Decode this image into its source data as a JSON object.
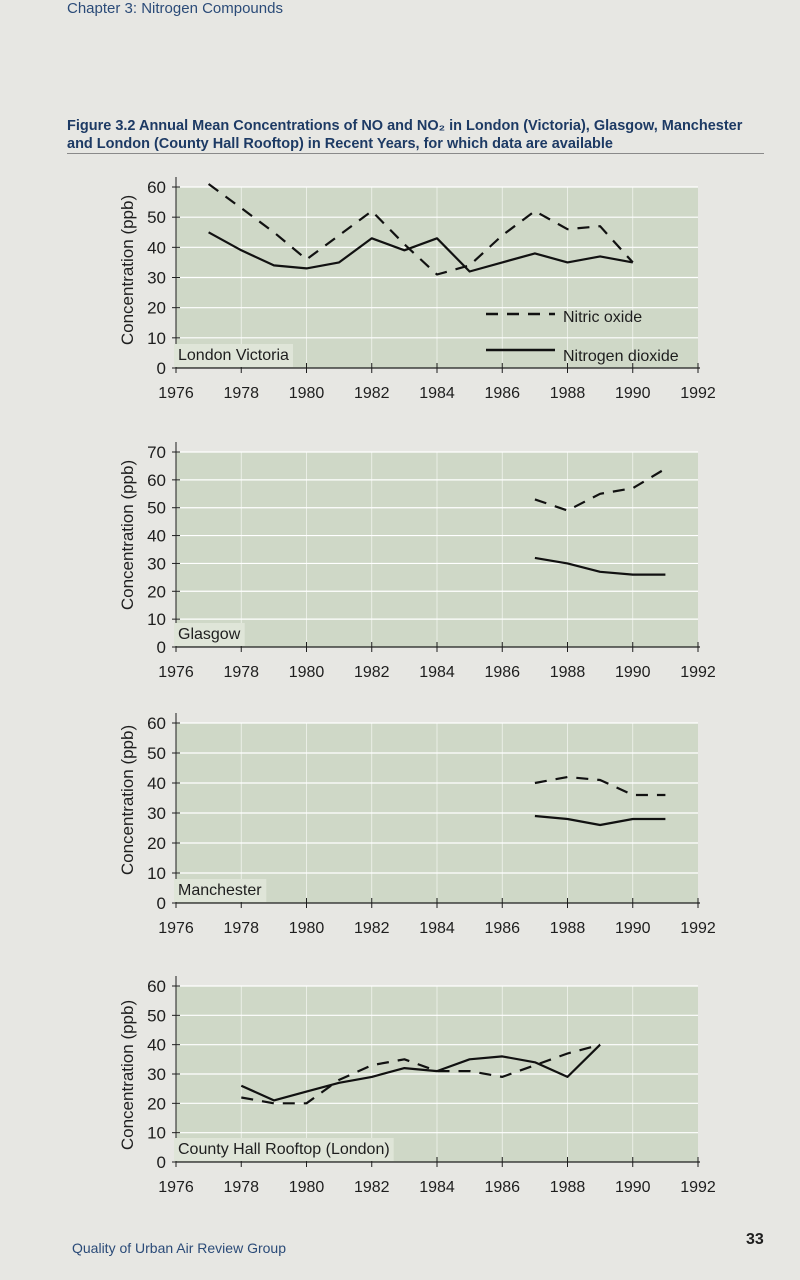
{
  "header": {
    "chapter": "Chapter 3: Nitrogen Compounds"
  },
  "figure_caption": "Figure 3.2 Annual Mean Concentrations of NO and NO₂ in London (Victoria), Glasgow, Manchester and London (County Hall Rooftop) in Recent Years, for which data are available",
  "legend": {
    "no_label": "Nitric oxide",
    "no2_label": "Nitrogen dioxide"
  },
  "footer": {
    "publisher": "Quality of Urban Air Review Group",
    "page_number": "33"
  },
  "colors": {
    "panel": "#cfd8c7",
    "grid": "#ffffff",
    "line": "#111111",
    "text": "#1e1e1e"
  },
  "chart_data": [
    {
      "type": "line",
      "panel_label": "London Victoria",
      "ylabel": "Concentration  (ppb)",
      "xlim": [
        1976,
        1992
      ],
      "ylim": [
        0,
        60
      ],
      "x_ticks": [
        "1976",
        "1978",
        "1980",
        "1982",
        "1984",
        "1986",
        "1988",
        "1990",
        "1992"
      ],
      "y_ticks": [
        "0",
        "10",
        "20",
        "30",
        "40",
        "50",
        "60"
      ],
      "grid": true,
      "series": [
        {
          "name": "Nitric oxide",
          "style": "dashed",
          "x": [
            1977,
            1978,
            1979,
            1980,
            1981,
            1982,
            1983,
            1984,
            1985,
            1986,
            1987,
            1988,
            1989,
            1990
          ],
          "y": [
            61,
            53,
            45,
            36,
            44,
            52,
            41,
            31,
            34,
            44,
            52,
            46,
            47,
            35
          ]
        },
        {
          "name": "Nitrogen dioxide",
          "style": "solid",
          "x": [
            1977,
            1978,
            1979,
            1980,
            1981,
            1982,
            1983,
            1984,
            1985,
            1986,
            1987,
            1988,
            1989,
            1990
          ],
          "y": [
            45,
            39,
            34,
            33,
            35,
            43,
            39,
            43,
            32,
            35,
            38,
            35,
            37,
            35
          ]
        }
      ]
    },
    {
      "type": "line",
      "panel_label": "Glasgow",
      "ylabel": "Concentration  (ppb)",
      "xlim": [
        1976,
        1992
      ],
      "ylim": [
        0,
        70
      ],
      "x_ticks": [
        "1976",
        "1978",
        "1980",
        "1982",
        "1984",
        "1986",
        "1988",
        "1990",
        "1992"
      ],
      "y_ticks": [
        "0",
        "10",
        "20",
        "30",
        "40",
        "50",
        "60",
        "70"
      ],
      "grid": true,
      "series": [
        {
          "name": "Nitric oxide",
          "style": "dashed",
          "x": [
            1987,
            1988,
            1989,
            1990,
            1991
          ],
          "y": [
            53,
            49,
            55,
            57,
            64
          ]
        },
        {
          "name": "Nitrogen dioxide",
          "style": "solid",
          "x": [
            1987,
            1988,
            1989,
            1990,
            1991
          ],
          "y": [
            32,
            30,
            27,
            26,
            26
          ]
        }
      ]
    },
    {
      "type": "line",
      "panel_label": "Manchester",
      "ylabel": "Concentration  (ppb)",
      "xlim": [
        1976,
        1992
      ],
      "ylim": [
        0,
        60
      ],
      "x_ticks": [
        "1976",
        "1978",
        "1980",
        "1982",
        "1984",
        "1986",
        "1988",
        "1990",
        "1992"
      ],
      "y_ticks": [
        "0",
        "10",
        "20",
        "30",
        "40",
        "50",
        "60"
      ],
      "grid": true,
      "series": [
        {
          "name": "Nitric oxide",
          "style": "dashed",
          "x": [
            1987,
            1988,
            1989,
            1990,
            1991
          ],
          "y": [
            40,
            42,
            41,
            36,
            36
          ]
        },
        {
          "name": "Nitrogen dioxide",
          "style": "solid",
          "x": [
            1987,
            1988,
            1989,
            1990,
            1991
          ],
          "y": [
            29,
            28,
            26,
            28,
            28
          ]
        }
      ]
    },
    {
      "type": "line",
      "panel_label": "County Hall Rooftop (London)",
      "ylabel": "Concentration  (ppb)",
      "xlim": [
        1976,
        1992
      ],
      "ylim": [
        0,
        60
      ],
      "x_ticks": [
        "1976",
        "1978",
        "1980",
        "1982",
        "1984",
        "1986",
        "1988",
        "1990",
        "1992"
      ],
      "y_ticks": [
        "0",
        "10",
        "20",
        "30",
        "40",
        "50",
        "60"
      ],
      "grid": true,
      "series": [
        {
          "name": "Nitric oxide",
          "style": "dashed",
          "x": [
            1978,
            1979,
            1980,
            1981,
            1982,
            1983,
            1984,
            1985,
            1986,
            1987,
            1988,
            1989
          ],
          "y": [
            22,
            20,
            20,
            28,
            33,
            35,
            31,
            31,
            29,
            33,
            37,
            40
          ]
        },
        {
          "name": "Nitrogen dioxide",
          "style": "solid",
          "x": [
            1978,
            1979,
            1980,
            1981,
            1982,
            1983,
            1984,
            1985,
            1986,
            1987,
            1988,
            1989
          ],
          "y": [
            26,
            21,
            24,
            27,
            29,
            32,
            31,
            35,
            36,
            34,
            29,
            40
          ]
        }
      ]
    }
  ]
}
